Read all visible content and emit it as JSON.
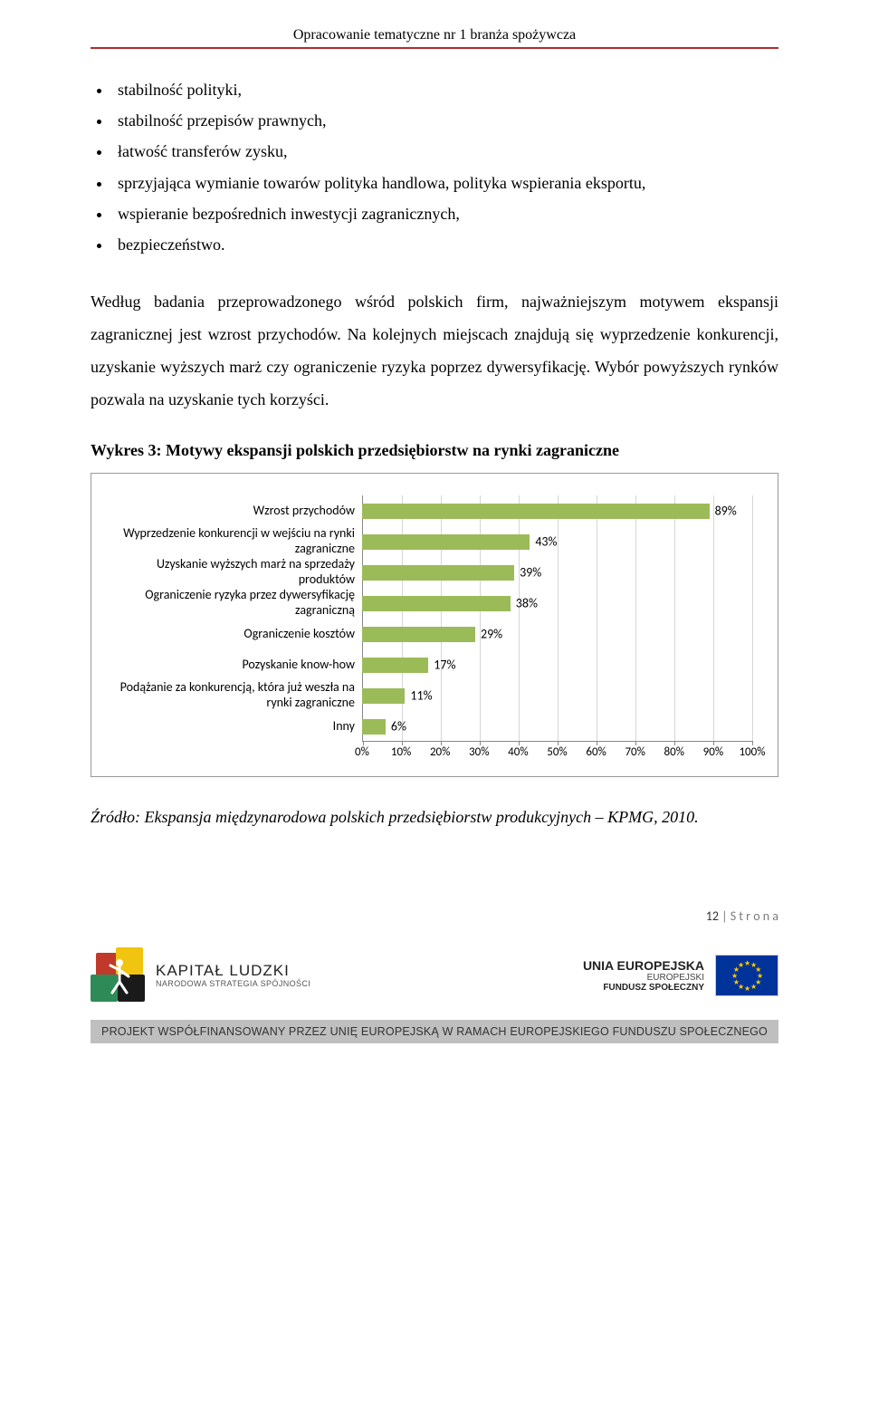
{
  "header": {
    "title": "Opracowanie tematyczne nr 1 branża spożywcza"
  },
  "bullets": [
    "stabilność polityki,",
    "stabilność przepisów prawnych,",
    "łatwość transferów zysku,",
    "sprzyjająca wymianie towarów polityka handlowa, polityka wspierania eksportu,",
    "wspieranie bezpośrednich inwestycji zagranicznych,",
    "bezpieczeństwo."
  ],
  "paragraph": "Według badania przeprowadzonego wśród polskich firm, najważniejszym motywem ekspansji zagranicznej jest wzrost przychodów. Na kolejnych miejscach znajdują się wyprzedzenie konkurencji, uzyskanie wyższych marż czy ograniczenie ryzyka poprzez dywersyfikację. Wybór powyższych rynków pozwala na uzyskanie tych korzyści.",
  "chart": {
    "title": "Wykres 3: Motywy ekspansji polskich przedsiębiorstw na rynki zagraniczne",
    "type": "horizontal-bar",
    "x_min": 0,
    "x_max": 100,
    "x_step": 10,
    "x_tick_suffix": "%",
    "bar_color": "#9bbb59",
    "grid_color": "#d6d6d6",
    "axis_color": "#888888",
    "label_fontsize": 14,
    "tick_fontsize": 13,
    "items": [
      {
        "label": "Wzrost przychodów",
        "value": 89,
        "display": "89%"
      },
      {
        "label": "Wyprzedzenie konkurencji w wejściu na rynki zagraniczne",
        "value": 43,
        "display": "43%"
      },
      {
        "label": "Uzyskanie wyższych marż na sprzedaży produktów",
        "value": 39,
        "display": "39%"
      },
      {
        "label": "Ograniczenie ryzyka przez dywersyfikację zagraniczną",
        "value": 38,
        "display": "38%"
      },
      {
        "label": "Ograniczenie kosztów",
        "value": 29,
        "display": "29%"
      },
      {
        "label": "Pozyskanie know-how",
        "value": 17,
        "display": "17%"
      },
      {
        "label": "Podążanie za konkurencją, która już weszła na rynki zagraniczne",
        "value": 11,
        "display": "11%"
      },
      {
        "label": "Inny",
        "value": 6,
        "display": "6%"
      }
    ]
  },
  "source": "Źródło: Ekspansja międzynarodowa polskich przedsiębiorstw produkcyjnych – KPMG, 2010.",
  "page": {
    "number": "12",
    "suffix": " | S t r o n a"
  },
  "footer": {
    "kapital_l1": "KAPITAŁ LUDZKI",
    "kapital_l2": "NARODOWA STRATEGIA SPÓJNOŚCI",
    "ue_l1": "UNIA EUROPEJSKA",
    "ue_l2": "EUROPEJSKI",
    "ue_l3": "FUNDUSZ SPOŁECZNY",
    "bar": "PROJEKT WSPÓŁFINANSOWANY PRZEZ UNIĘ EUROPEJSKĄ W RAMACH EUROPEJSKIEGO FUNDUSZU SPOŁECZNEGO"
  }
}
